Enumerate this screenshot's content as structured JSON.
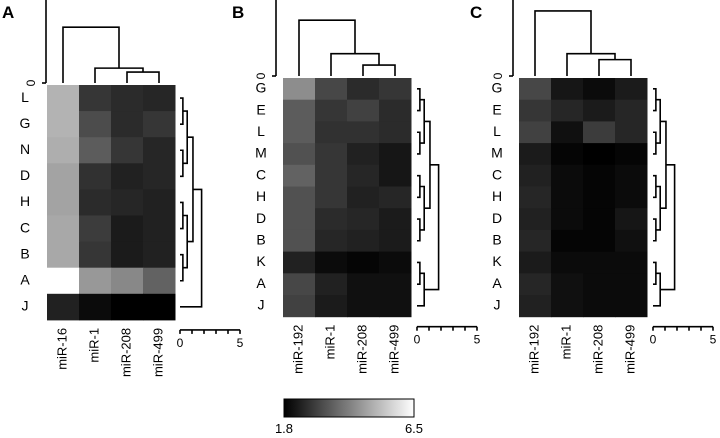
{
  "chart_data": [
    {
      "type": "heatmap",
      "panel": "A",
      "columns": [
        "miR-16",
        "miR-1",
        "miR-208",
        "miR-499"
      ],
      "rows": [
        "L",
        "G",
        "N",
        "D",
        "H",
        "C",
        "B",
        "A",
        "J"
      ],
      "values": [
        [
          5.1,
          2.8,
          2.6,
          2.5
        ],
        [
          5.1,
          3.2,
          2.6,
          2.8
        ],
        [
          5.0,
          3.5,
          2.8,
          2.5
        ],
        [
          4.8,
          2.7,
          2.4,
          2.5
        ],
        [
          4.8,
          2.6,
          2.5,
          2.4
        ],
        [
          4.9,
          2.9,
          2.3,
          2.4
        ],
        [
          4.9,
          2.8,
          2.3,
          2.4
        ],
        [
          6.5,
          4.6,
          4.3,
          3.6
        ],
        [
          2.4,
          2.0,
          1.8,
          1.8
        ]
      ],
      "column_dendrogram_scale": {
        "ticks": [
          "0",
          "5"
        ],
        "range": [
          0,
          5
        ]
      },
      "row_dendrogram_scale": {
        "ticks": [
          "0",
          "5"
        ],
        "range": [
          0,
          5
        ]
      }
    },
    {
      "type": "heatmap",
      "panel": "B",
      "columns": [
        "miR-192",
        "miR-1",
        "miR-208",
        "miR-499"
      ],
      "rows": [
        "G",
        "E",
        "L",
        "M",
        "C",
        "H",
        "D",
        "B",
        "K",
        "A",
        "J"
      ],
      "values": [
        [
          4.4,
          3.1,
          2.6,
          2.8
        ],
        [
          3.5,
          2.8,
          3.0,
          2.6
        ],
        [
          3.5,
          2.7,
          2.7,
          2.6
        ],
        [
          3.3,
          2.8,
          2.4,
          2.2
        ],
        [
          3.6,
          2.8,
          2.5,
          2.2
        ],
        [
          3.3,
          2.8,
          2.4,
          2.5
        ],
        [
          3.3,
          2.6,
          2.5,
          2.3
        ],
        [
          3.3,
          2.5,
          2.4,
          2.3
        ],
        [
          2.4,
          2.0,
          1.9,
          2.0
        ],
        [
          3.1,
          2.4,
          2.1,
          2.1
        ],
        [
          3.0,
          2.3,
          2.1,
          2.1
        ]
      ],
      "column_dendrogram_scale": {
        "ticks": [
          "0",
          "5"
        ],
        "range": [
          0,
          5
        ]
      },
      "row_dendrogram_scale": {
        "ticks": [
          "0",
          "5"
        ],
        "range": [
          0,
          5
        ]
      }
    },
    {
      "type": "heatmap",
      "panel": "C",
      "columns": [
        "miR-192",
        "miR-1",
        "miR-208",
        "miR-499"
      ],
      "rows": [
        "G",
        "E",
        "L",
        "M",
        "C",
        "H",
        "D",
        "B",
        "K",
        "A",
        "J"
      ],
      "values": [
        [
          3.1,
          2.2,
          2.0,
          2.3
        ],
        [
          2.8,
          2.5,
          2.3,
          2.5
        ],
        [
          3.0,
          2.1,
          2.9,
          2.5
        ],
        [
          2.3,
          1.9,
          1.8,
          1.9
        ],
        [
          2.4,
          2.0,
          1.9,
          2.0
        ],
        [
          2.5,
          2.0,
          1.9,
          2.0
        ],
        [
          2.4,
          2.0,
          1.9,
          2.2
        ],
        [
          2.5,
          1.9,
          1.9,
          2.1
        ],
        [
          2.3,
          2.0,
          2.0,
          2.0
        ],
        [
          2.5,
          2.1,
          2.0,
          2.0
        ],
        [
          2.4,
          2.1,
          2.0,
          2.0
        ]
      ],
      "column_dendrogram_scale": {
        "ticks": [
          "0",
          "5"
        ],
        "range": [
          0,
          5
        ]
      },
      "row_dendrogram_scale": {
        "ticks": [
          "0",
          "5"
        ],
        "range": [
          0,
          5
        ]
      }
    }
  ],
  "colorbar": {
    "min": 1.8,
    "max": 6.5,
    "min_label": "1.8",
    "max_label": "6.5",
    "low_color": "#000000",
    "high_color": "#ffffff"
  }
}
